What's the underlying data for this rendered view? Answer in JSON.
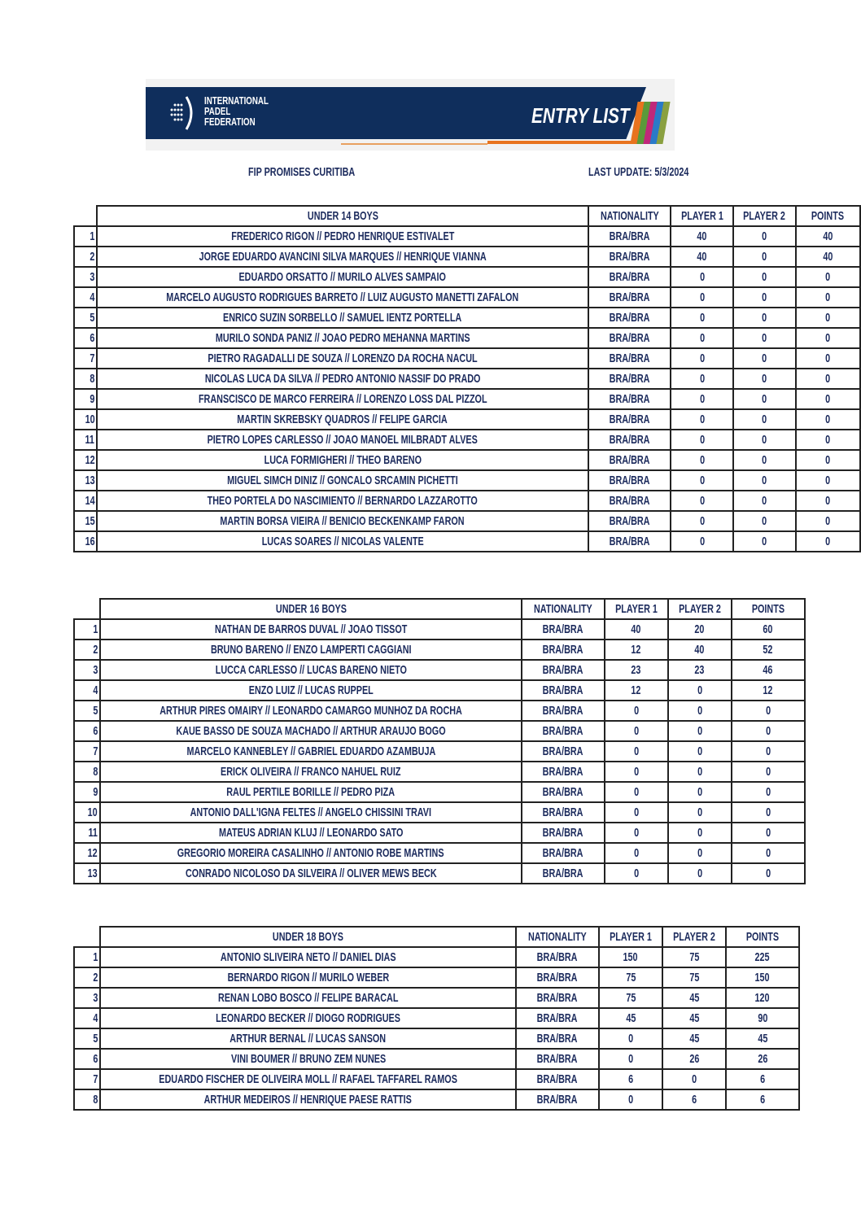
{
  "header": {
    "logo_text": [
      "INTERNATIONAL",
      "PADEL",
      "FEDERATION"
    ],
    "banner_title": "ENTRY LIST",
    "tournament": "FIP PROMISES CURITIBA",
    "last_update": "LAST UPDATE: 5/3/2024"
  },
  "columns": [
    "NATIONALITY",
    "PLAYER 1",
    "PLAYER 2",
    "POINTS"
  ],
  "colors": {
    "text": "#1b2a5c",
    "banner": "#0f2e5c",
    "accent": "#e8731e"
  },
  "tables": [
    {
      "title": "UNDER 14 BOYS",
      "rows": [
        [
          "1",
          "FREDERICO RIGON // PEDRO HENRIQUE ESTIVALET",
          "BRA/BRA",
          "40",
          "0",
          "40"
        ],
        [
          "2",
          "JORGE EDUARDO AVANCINI SILVA MARQUES // HENRIQUE VIANNA",
          "BRA/BRA",
          "40",
          "0",
          "40"
        ],
        [
          "3",
          "EDUARDO ORSATTO // MURILO ALVES SAMPAIO",
          "BRA/BRA",
          "0",
          "0",
          "0"
        ],
        [
          "4",
          "MARCELO AUGUSTO RODRIGUES BARRETO // LUIZ AUGUSTO MANETTI ZAFALON",
          "BRA/BRA",
          "0",
          "0",
          "0"
        ],
        [
          "5",
          "ENRICO SUZIN SORBELLO // SAMUEL IENTZ PORTELLA",
          "BRA/BRA",
          "0",
          "0",
          "0"
        ],
        [
          "6",
          "MURILO SONDA PANIZ // JOAO PEDRO MEHANNA MARTINS",
          "BRA/BRA",
          "0",
          "0",
          "0"
        ],
        [
          "7",
          "PIETRO RAGADALLI DE SOUZA // LORENZO DA ROCHA NACUL",
          "BRA/BRA",
          "0",
          "0",
          "0"
        ],
        [
          "8",
          "NICOLAS LUCA DA SILVA // PEDRO ANTONIO NASSIF DO PRADO",
          "BRA/BRA",
          "0",
          "0",
          "0"
        ],
        [
          "9",
          "FRANSCISCO DE MARCO FERREIRA // LORENZO LOSS DAL PIZZOL",
          "BRA/BRA",
          "0",
          "0",
          "0"
        ],
        [
          "10",
          "MARTIN SKREBSKY QUADROS // FELIPE GARCIA",
          "BRA/BRA",
          "0",
          "0",
          "0"
        ],
        [
          "11",
          "PIETRO LOPES CARLESSO // JOAO MANOEL MILBRADT ALVES",
          "BRA/BRA",
          "0",
          "0",
          "0"
        ],
        [
          "12",
          "LUCA FORMIGHERI // THEO BARENO",
          "BRA/BRA",
          "0",
          "0",
          "0"
        ],
        [
          "13",
          "MIGUEL SIMCH DINIZ // GONCALO SRCAMIN PICHETTI",
          "BRA/BRA",
          "0",
          "0",
          "0"
        ],
        [
          "14",
          "THEO PORTELA DO NASCIMIENTO // BERNARDO LAZZAROTTO",
          "BRA/BRA",
          "0",
          "0",
          "0"
        ],
        [
          "15",
          "MARTIN BORSA VIEIRA // BENICIO BECKENKAMP FARON",
          "BRA/BRA",
          "0",
          "0",
          "0"
        ],
        [
          "16",
          "LUCAS SOARES // NICOLAS VALENTE",
          "BRA/BRA",
          "0",
          "0",
          "0"
        ]
      ]
    },
    {
      "title": "UNDER 16 BOYS",
      "rows": [
        [
          "1",
          "NATHAN DE BARROS DUVAL // JOAO TISSOT",
          "BRA/BRA",
          "40",
          "20",
          "60"
        ],
        [
          "2",
          "BRUNO BARENO // ENZO LAMPERTI CAGGIANI",
          "BRA/BRA",
          "12",
          "40",
          "52"
        ],
        [
          "3",
          "LUCCA CARLESSO // LUCAS BARENO NIETO",
          "BRA/BRA",
          "23",
          "23",
          "46"
        ],
        [
          "4",
          "ENZO LUIZ // LUCAS RUPPEL",
          "BRA/BRA",
          "12",
          "0",
          "12"
        ],
        [
          "5",
          "ARTHUR PIRES OMAIRY // LEONARDO CAMARGO MUNHOZ DA ROCHA",
          "BRA/BRA",
          "0",
          "0",
          "0"
        ],
        [
          "6",
          "KAUE BASSO DE SOUZA MACHADO // ARTHUR ARAUJO BOGO",
          "BRA/BRA",
          "0",
          "0",
          "0"
        ],
        [
          "7",
          "MARCELO KANNEBLEY // GABRIEL EDUARDO AZAMBUJA",
          "BRA/BRA",
          "0",
          "0",
          "0"
        ],
        [
          "8",
          "ERICK OLIVEIRA // FRANCO NAHUEL RUIZ",
          "BRA/BRA",
          "0",
          "0",
          "0"
        ],
        [
          "9",
          "RAUL PERTILE BORILLE // PEDRO PIZA",
          "BRA/BRA",
          "0",
          "0",
          "0"
        ],
        [
          "10",
          "ANTONIO DALL'IGNA FELTES // ANGELO CHISSINI TRAVI",
          "BRA/BRA",
          "0",
          "0",
          "0"
        ],
        [
          "11",
          "MATEUS ADRIAN KLUJ // LEONARDO SATO",
          "BRA/BRA",
          "0",
          "0",
          "0"
        ],
        [
          "12",
          "GREGORIO MOREIRA CASALINHO // ANTONIO ROBE MARTINS",
          "BRA/BRA",
          "0",
          "0",
          "0"
        ],
        [
          "13",
          "CONRADO NICOLOSO DA SILVEIRA // OLIVER MEWS BECK",
          "BRA/BRA",
          "0",
          "0",
          "0"
        ]
      ]
    },
    {
      "title": "UNDER 18 BOYS",
      "rows": [
        [
          "1",
          "ANTONIO SLIVEIRA NETO // DANIEL DIAS",
          "BRA/BRA",
          "150",
          "75",
          "225"
        ],
        [
          "2",
          "BERNARDO RIGON // MURILO WEBER",
          "BRA/BRA",
          "75",
          "75",
          "150"
        ],
        [
          "3",
          "RENAN LOBO BOSCO // FELIPE BARACAL",
          "BRA/BRA",
          "75",
          "45",
          "120"
        ],
        [
          "4",
          "LEONARDO BECKER // DIOGO RODRIGUES",
          "BRA/BRA",
          "45",
          "45",
          "90"
        ],
        [
          "5",
          "ARTHUR BERNAL // LUCAS SANSON",
          "BRA/BRA",
          "0",
          "45",
          "45"
        ],
        [
          "6",
          "VINI BOUMER // BRUNO ZEM NUNES",
          "BRA/BRA",
          "0",
          "26",
          "26"
        ],
        [
          "7",
          "EDUARDO FISCHER DE OLIVEIRA MOLL // RAFAEL TAFFAREL RAMOS",
          "BRA/BRA",
          "6",
          "0",
          "6"
        ],
        [
          "8",
          "ARTHUR MEDEIROS // HENRIQUE PAESE RATTIS",
          "BRA/BRA",
          "0",
          "6",
          "6"
        ]
      ]
    }
  ]
}
